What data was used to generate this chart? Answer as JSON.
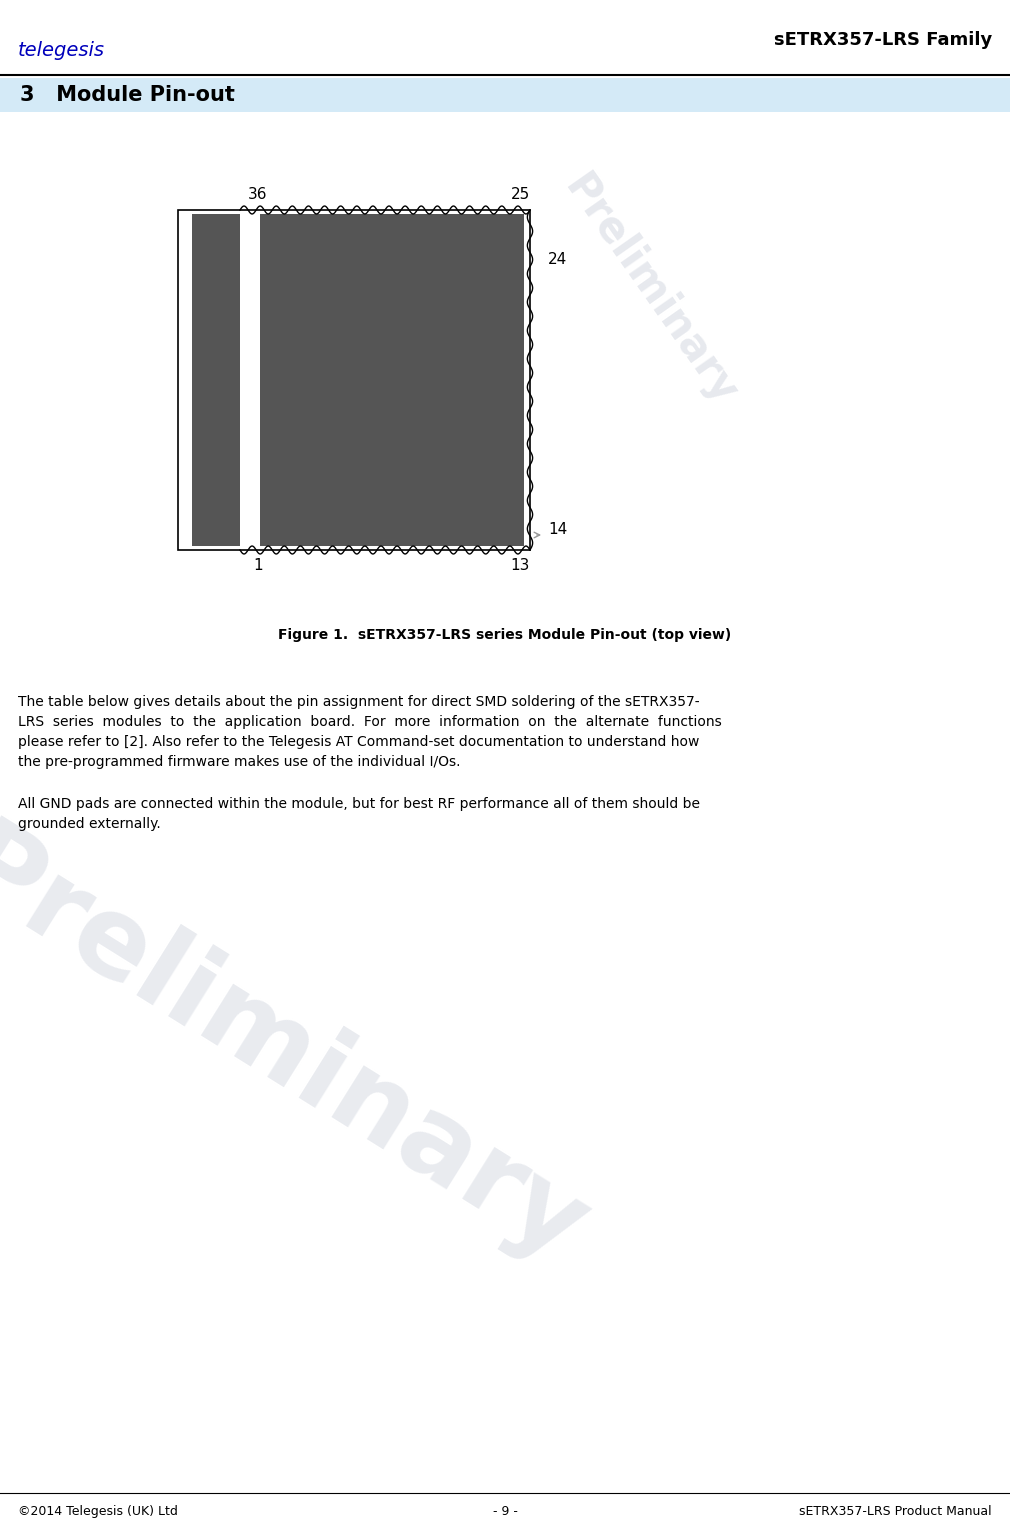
{
  "page_width": 10.1,
  "page_height": 15.32,
  "dpi": 100,
  "bg": "#ffffff",
  "header_right": "sETRX357-LRS Family",
  "section_bg": "#d4eaf7",
  "section_text": "3   Module Pin-out",
  "module_fill": "#555555",
  "fig_caption": "Figure 1.  sETRX357-LRS series Module Pin-out (top view)",
  "p1_lines": [
    "The table below gives details about the pin assignment for direct SMD soldering of the sETRX357-",
    "LRS  series  modules  to  the  application  board.  For  more  information  on  the  alternate  functions",
    "please refer to [2]. Also refer to the Telegesis AT Command-set documentation to understand how",
    "the pre-programmed firmware makes use of the individual I/Os."
  ],
  "p2_lines": [
    "All GND pads are connected within the module, but for best RF performance all of them should be",
    "grounded externally."
  ],
  "footer_left": "©2014 Telegesis (UK) Ltd",
  "footer_mid": "- 9 -",
  "footer_right": "sETRX357-LRS Product Manual",
  "wm_text": "Preliminary",
  "wm_color": "#b0b8c8",
  "wm_alpha": 0.28,
  "wm_fontsize": 80,
  "wm_rotation": -32,
  "wm2_fontsize": 30,
  "wm2_alpha": 0.25
}
